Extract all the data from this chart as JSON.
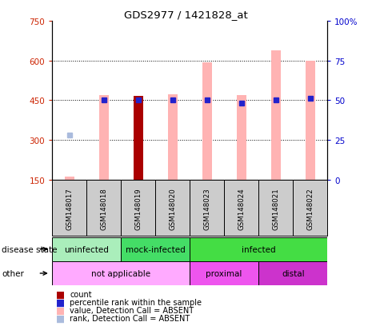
{
  "title": "GDS2977 / 1421828_at",
  "samples": [
    "GSM148017",
    "GSM148018",
    "GSM148019",
    "GSM148020",
    "GSM148023",
    "GSM148024",
    "GSM148021",
    "GSM148022"
  ],
  "ylim_left": [
    150,
    750
  ],
  "ylim_right": [
    0,
    100
  ],
  "yticks_left": [
    150,
    300,
    450,
    600,
    750
  ],
  "yticks_right": [
    0,
    25,
    50,
    75,
    100
  ],
  "bar_values": [
    162,
    470,
    465,
    472,
    592,
    470,
    638,
    600
  ],
  "bar_colors": [
    "#ffb3b3",
    "#ffb3b3",
    "#aa0000",
    "#ffb3b3",
    "#ffb3b3",
    "#ffb3b3",
    "#ffb3b3",
    "#ffb3b3"
  ],
  "rank_values": [
    317,
    452,
    452,
    452,
    452,
    440,
    452,
    456
  ],
  "rank_absent": [
    true,
    false,
    false,
    false,
    false,
    false,
    false,
    false
  ],
  "rank_colors_present": "#2222cc",
  "rank_color_absent": "#aabbdd",
  "disease_state_groups": [
    {
      "label": "uninfected",
      "start": 0,
      "end": 2,
      "color": "#aaeebb"
    },
    {
      "label": "mock-infected",
      "start": 2,
      "end": 4,
      "color": "#44dd66"
    },
    {
      "label": "infected",
      "start": 4,
      "end": 8,
      "color": "#44dd44"
    }
  ],
  "other_groups": [
    {
      "label": "not applicable",
      "start": 0,
      "end": 4,
      "color": "#ffaaff"
    },
    {
      "label": "proximal",
      "start": 4,
      "end": 6,
      "color": "#ee55ee"
    },
    {
      "label": "distal",
      "start": 6,
      "end": 8,
      "color": "#cc33cc"
    }
  ],
  "legend_colors": [
    "#aa0000",
    "#2222cc",
    "#ffb3b3",
    "#aabbdd"
  ],
  "legend_labels": [
    "count",
    "percentile rank within the sample",
    "value, Detection Call = ABSENT",
    "rank, Detection Call = ABSENT"
  ],
  "bg_color": "#ffffff"
}
